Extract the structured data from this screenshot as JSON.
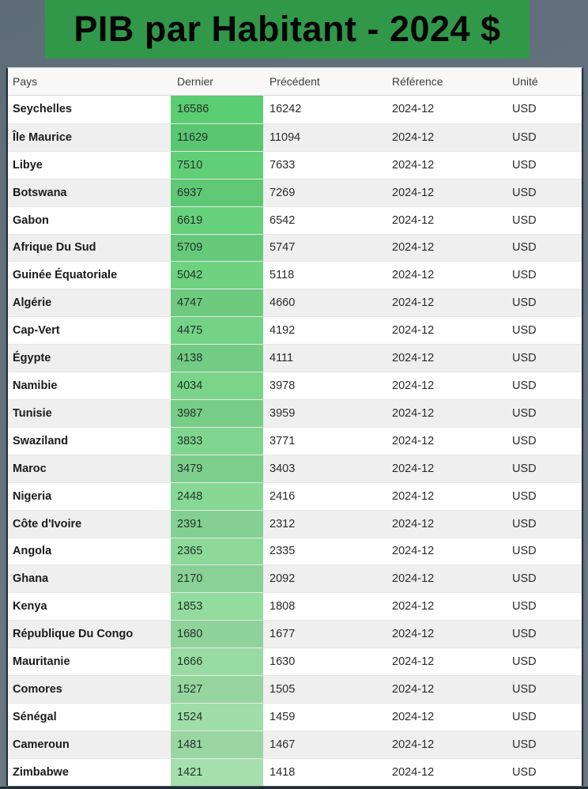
{
  "page": {
    "title": "PIB par Habitant - 2024 $"
  },
  "colors": {
    "banner_green": "#319849",
    "banner_text": "#050505",
    "page_bg": "#67757f",
    "card_border": "#202f3c",
    "row_alt_bg": "#efefef",
    "heatmap_start": "#5bcd72",
    "heatmap_end": "#a5dfad"
  },
  "table": {
    "headers": [
      "Pays",
      "Dernier",
      "Précédent",
      "Référence",
      "Unité"
    ],
    "rows": [
      {
        "pays": "Seychelles",
        "dernier": "16586",
        "precedent": "16242",
        "reference": "2024-12",
        "unite": "USD",
        "color": "#5bcd72"
      },
      {
        "pays": "Île Maurice",
        "dernier": "11629",
        "precedent": "11094",
        "reference": "2024-12",
        "unite": "USD",
        "color": "#5ece75"
      },
      {
        "pays": "Libye",
        "dernier": "7510",
        "precedent": "7633",
        "reference": "2024-12",
        "unite": "USD",
        "color": "#61cf77"
      },
      {
        "pays": "Botswana",
        "dernier": "6937",
        "precedent": "7269",
        "reference": "2024-12",
        "unite": "USD",
        "color": "#64cf79"
      },
      {
        "pays": "Gabon",
        "dernier": "6619",
        "precedent": "6542",
        "reference": "2024-12",
        "unite": "USD",
        "color": "#67d07c"
      },
      {
        "pays": "Afrique Du Sud",
        "dernier": "5709",
        "precedent": "5747",
        "reference": "2024-12",
        "unite": "USD",
        "color": "#6ad17e"
      },
      {
        "pays": "Guinée Équatoriale",
        "dernier": "5042",
        "precedent": "5118",
        "reference": "2024-12",
        "unite": "USD",
        "color": "#6ed281"
      },
      {
        "pays": "Algérie",
        "dernier": "4747",
        "precedent": "4660",
        "reference": "2024-12",
        "unite": "USD",
        "color": "#71d283"
      },
      {
        "pays": "Cap-Vert",
        "dernier": "4475",
        "precedent": "4192",
        "reference": "2024-12",
        "unite": "USD",
        "color": "#74d386"
      },
      {
        "pays": "Égypte",
        "dernier": "4138",
        "precedent": "4111",
        "reference": "2024-12",
        "unite": "USD",
        "color": "#77d488"
      },
      {
        "pays": "Namibie",
        "dernier": "4034",
        "precedent": "3978",
        "reference": "2024-12",
        "unite": "USD",
        "color": "#7ad58b"
      },
      {
        "pays": "Tunisie",
        "dernier": "3987",
        "precedent": "3959",
        "reference": "2024-12",
        "unite": "USD",
        "color": "#7dd58d"
      },
      {
        "pays": "Swaziland",
        "dernier": "3833",
        "precedent": "3771",
        "reference": "2024-12",
        "unite": "USD",
        "color": "#80d690"
      },
      {
        "pays": "Maroc",
        "dernier": "3479",
        "precedent": "3403",
        "reference": "2024-12",
        "unite": "USD",
        "color": "#83d792"
      },
      {
        "pays": "Nigeria",
        "dernier": "2448",
        "precedent": "2416",
        "reference": "2024-12",
        "unite": "USD",
        "color": "#86d894"
      },
      {
        "pays": "Côte d'Ivoire",
        "dernier": "2391",
        "precedent": "2312",
        "reference": "2024-12",
        "unite": "USD",
        "color": "#89d897"
      },
      {
        "pays": "Angola",
        "dernier": "2365",
        "precedent": "2335",
        "reference": "2024-12",
        "unite": "USD",
        "color": "#8cd999"
      },
      {
        "pays": "Ghana",
        "dernier": "2170",
        "precedent": "2092",
        "reference": "2024-12",
        "unite": "USD",
        "color": "#8fda9c"
      },
      {
        "pays": "Kenya",
        "dernier": "1853",
        "precedent": "1808",
        "reference": "2024-12",
        "unite": "USD",
        "color": "#93db9e"
      },
      {
        "pays": "République Du Congo",
        "dernier": "1680",
        "precedent": "1677",
        "reference": "2024-12",
        "unite": "USD",
        "color": "#96dba1"
      },
      {
        "pays": "Mauritanie",
        "dernier": "1666",
        "precedent": "1630",
        "reference": "2024-12",
        "unite": "USD",
        "color": "#99dca3"
      },
      {
        "pays": "Comores",
        "dernier": "1527",
        "precedent": "1505",
        "reference": "2024-12",
        "unite": "USD",
        "color": "#9cdda6"
      },
      {
        "pays": "Sénégal",
        "dernier": "1524",
        "precedent": "1459",
        "reference": "2024-12",
        "unite": "USD",
        "color": "#9fdea8"
      },
      {
        "pays": "Cameroun",
        "dernier": "1481",
        "precedent": "1467",
        "reference": "2024-12",
        "unite": "USD",
        "color": "#a2deaa"
      },
      {
        "pays": "Zimbabwe",
        "dernier": "1421",
        "precedent": "1418",
        "reference": "2024-12",
        "unite": "USD",
        "color": "#a5dfad"
      }
    ]
  }
}
